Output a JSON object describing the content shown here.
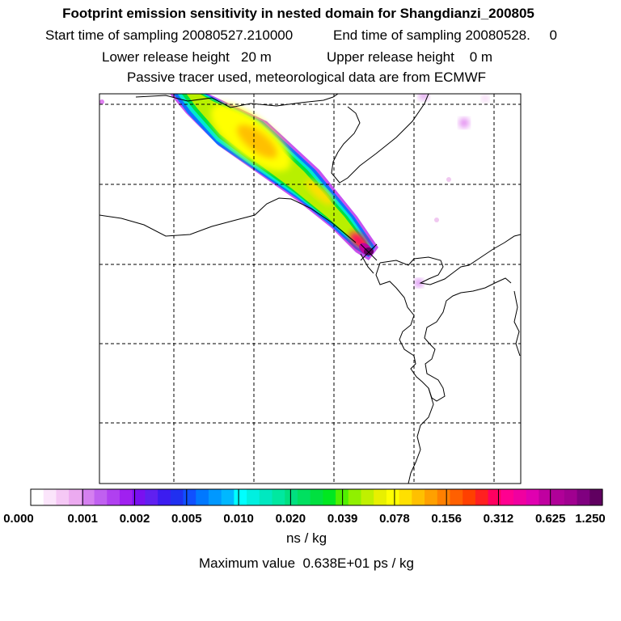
{
  "header": {
    "title": "Footprint emission sensitivity in nested domain for Shangdianzi_200805",
    "start": "Start time of sampling 20080527.210000",
    "end": "End time of sampling 20080528.     0",
    "lower": "Lower release height   20 m",
    "upper": "Upper release height    0 m",
    "tracer": "Passive tracer used, meteorological data are from ECMWF"
  },
  "chart_data": {
    "type": "heatmap",
    "title": "Footprint emission sensitivity in nested domain for Shangdianzi_200805",
    "grid": true,
    "colorbar": {
      "tick_labels": [
        "0.000",
        "0.001",
        "0.002",
        "0.005",
        "0.010",
        "0.020",
        "0.039",
        "0.078",
        "0.156",
        "0.312",
        "0.625",
        "1.250"
      ],
      "colors": [
        "#ffffff",
        "#fbe5fb",
        "#f5c8f5",
        "#ecaaf0",
        "#d580f0",
        "#c060f0",
        "#b040f0",
        "#a020f0",
        "#7a10f0",
        "#6020f0",
        "#3c1cf0",
        "#2030f0",
        "#1050ff",
        "#0078ff",
        "#0098ff",
        "#00b8ff",
        "#00ffff",
        "#00f0e0",
        "#00e8c0",
        "#00e8a0",
        "#00e080",
        "#00e060",
        "#00e040",
        "#00e820",
        "#50f000",
        "#90f000",
        "#c0f000",
        "#e8f000",
        "#ffff00",
        "#ffe000",
        "#ffc000",
        "#ffa000",
        "#ff8000",
        "#ff6000",
        "#ff4000",
        "#ff2020",
        "#ff0060",
        "#ff0090",
        "#f000a0",
        "#e000b0",
        "#c000a0",
        "#b00098",
        "#a00090",
        "#800080",
        "#600060"
      ],
      "units": "ns / kg"
    },
    "max_value_label": "Maximum value  0.638E+01 ps / kg",
    "receptor": "Shangdianzi"
  }
}
